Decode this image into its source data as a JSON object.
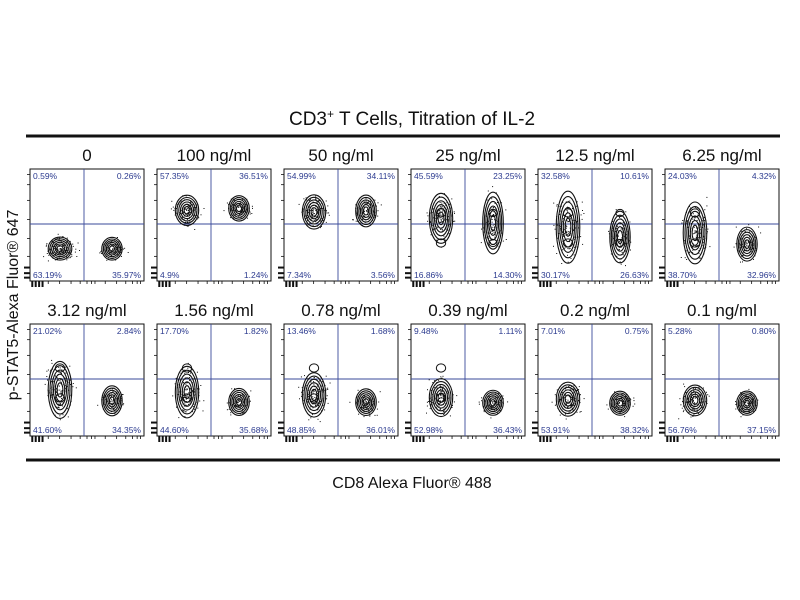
{
  "chart_data": {
    "type": "contour",
    "title_main": "CD3",
    "title_sup": "+",
    "title_rest": " T Cells, Titration of IL-2",
    "xlabel": "CD8 Alexa Fluor® 488",
    "ylabel": "p-STAT5-Alexa Fluor® 647",
    "panels": [
      {
        "label": "0",
        "quadrants": {
          "upper_left": "0.59%",
          "upper_right": "0.26%",
          "lower_left": "63.19%",
          "lower_right": "35.97%"
        }
      },
      {
        "label": "100 ng/ml",
        "quadrants": {
          "upper_left": "57.35%",
          "upper_right": "36.51%",
          "lower_left": "4.9%",
          "lower_right": "1.24%"
        }
      },
      {
        "label": "50 ng/ml",
        "quadrants": {
          "upper_left": "54.99%",
          "upper_right": "34.11%",
          "lower_left": "7.34%",
          "lower_right": "3.56%"
        }
      },
      {
        "label": "25 ng/ml",
        "quadrants": {
          "upper_left": "45.59%",
          "upper_right": "23.25%",
          "lower_left": "16.86%",
          "lower_right": "14.30%"
        }
      },
      {
        "label": "12.5 ng/ml",
        "quadrants": {
          "upper_left": "32.58%",
          "upper_right": "10.61%",
          "lower_left": "30.17%",
          "lower_right": "26.63%"
        }
      },
      {
        "label": "6.25 ng/ml",
        "quadrants": {
          "upper_left": "24.03%",
          "upper_right": "4.32%",
          "lower_left": "38.70%",
          "lower_right": "32.96%"
        }
      },
      {
        "label": "3.12 ng/ml",
        "quadrants": {
          "upper_left": "21.02%",
          "upper_right": "2.84%",
          "lower_left": "41.60%",
          "lower_right": "34.35%"
        }
      },
      {
        "label": "1.56 ng/ml",
        "quadrants": {
          "upper_left": "17.70%",
          "upper_right": "1.82%",
          "lower_left": "44.60%",
          "lower_right": "35.68%"
        }
      },
      {
        "label": "0.78 ng/ml",
        "quadrants": {
          "upper_left": "13.46%",
          "upper_right": "1.68%",
          "lower_left": "48.85%",
          "lower_right": "36.01%"
        }
      },
      {
        "label": "0.39 ng/ml",
        "quadrants": {
          "upper_left": "9.48%",
          "upper_right": "1.11%",
          "lower_left": "52.98%",
          "lower_right": "36.43%"
        }
      },
      {
        "label": "0.2 ng/ml",
        "quadrants": {
          "upper_left": "7.01%",
          "upper_right": "0.75%",
          "lower_left": "53.91%",
          "lower_right": "38.32%"
        }
      },
      {
        "label": "0.1 ng/ml",
        "quadrants": {
          "upper_left": "5.28%",
          "upper_right": "0.80%",
          "lower_left": "56.76%",
          "lower_right": "37.15%"
        }
      }
    ],
    "colors": {
      "quadrant_text": "#2b3a8f",
      "gate_line": "#3a4a9a",
      "contour": "#111111"
    }
  }
}
